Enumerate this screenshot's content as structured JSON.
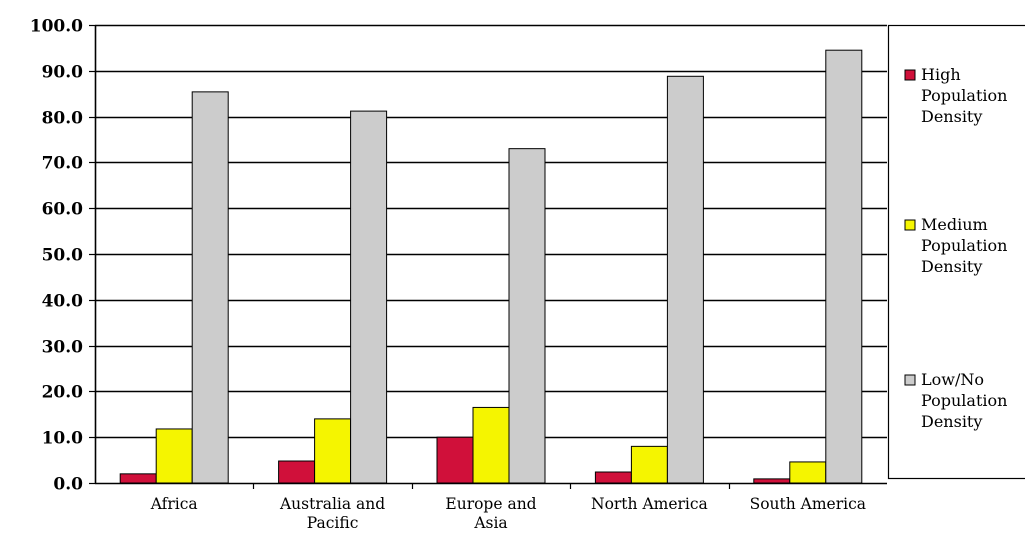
{
  "chart_data": {
    "type": "bar",
    "categories": [
      [
        "Africa"
      ],
      [
        "Australia and",
        "Pacific"
      ],
      [
        "Europe and",
        "Asia"
      ],
      [
        "North America"
      ],
      [
        "South America"
      ]
    ],
    "series": [
      {
        "name": [
          "High",
          "Population",
          "Density"
        ],
        "color": "#d0103a",
        "values": [
          2.0,
          4.8,
          10.0,
          2.4,
          0.9
        ]
      },
      {
        "name": [
          "Medium",
          "Population",
          "Density"
        ],
        "color": "#f5f500",
        "values": [
          11.8,
          14.0,
          16.5,
          8.0,
          4.6
        ]
      },
      {
        "name": [
          "Low/No",
          "Population",
          "Density"
        ],
        "color": "#cccccc",
        "values": [
          85.4,
          81.2,
          73.0,
          88.8,
          94.5
        ]
      }
    ],
    "yticks": [
      "0.0",
      "10.0",
      "20.0",
      "30.0",
      "40.0",
      "50.0",
      "60.0",
      "70.0",
      "80.0",
      "90.0",
      "100.0"
    ],
    "ylim": [
      0,
      100
    ],
    "grid": true,
    "legend": "right"
  }
}
